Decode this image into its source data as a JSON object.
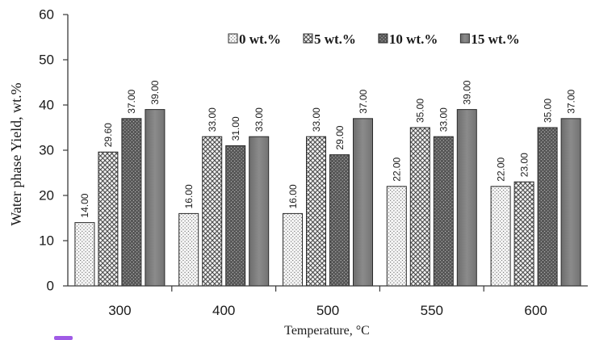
{
  "chart_data": {
    "type": "bar",
    "categories": [
      "300",
      "400",
      "500",
      "550",
      "600"
    ],
    "series": [
      {
        "name": "0 wt.%",
        "values": [
          14.0,
          16.0,
          16.0,
          22.0,
          22.0
        ],
        "data_labels": [
          "14.00",
          "16.00",
          "16.00",
          "22.00",
          "22.00"
        ],
        "color": "#f7f7f7",
        "pattern": "dots"
      },
      {
        "name": "5 wt.%",
        "values": [
          29.6,
          33.0,
          33.0,
          35.0,
          23.0
        ],
        "data_labels": [
          "29.60",
          "33.00",
          "33.00",
          "35.00",
          "23.00"
        ],
        "color": "#efefef",
        "pattern": "crosshatch"
      },
      {
        "name": "10 wt.%",
        "values": [
          37.0,
          31.0,
          29.0,
          33.0,
          35.0
        ],
        "data_labels": [
          "37.00",
          "31.00",
          "29.00",
          "33.00",
          "35.00"
        ],
        "color": "#555555",
        "pattern": "dots-dark"
      },
      {
        "name": "15 wt.%",
        "values": [
          39.0,
          33.0,
          37.0,
          39.0,
          37.0
        ],
        "data_labels": [
          "39.00",
          "33.00",
          "37.00",
          "39.00",
          "37.00"
        ],
        "color": "#7b7b7b",
        "pattern": "solid"
      }
    ],
    "xlabel": "Temperature, °C",
    "ylabel": "Water phase Yield, wt.%",
    "ylim": [
      0,
      60
    ],
    "yticks": [
      0,
      10,
      20,
      30,
      40,
      50,
      60
    ],
    "legend": "top",
    "grid": false
  }
}
